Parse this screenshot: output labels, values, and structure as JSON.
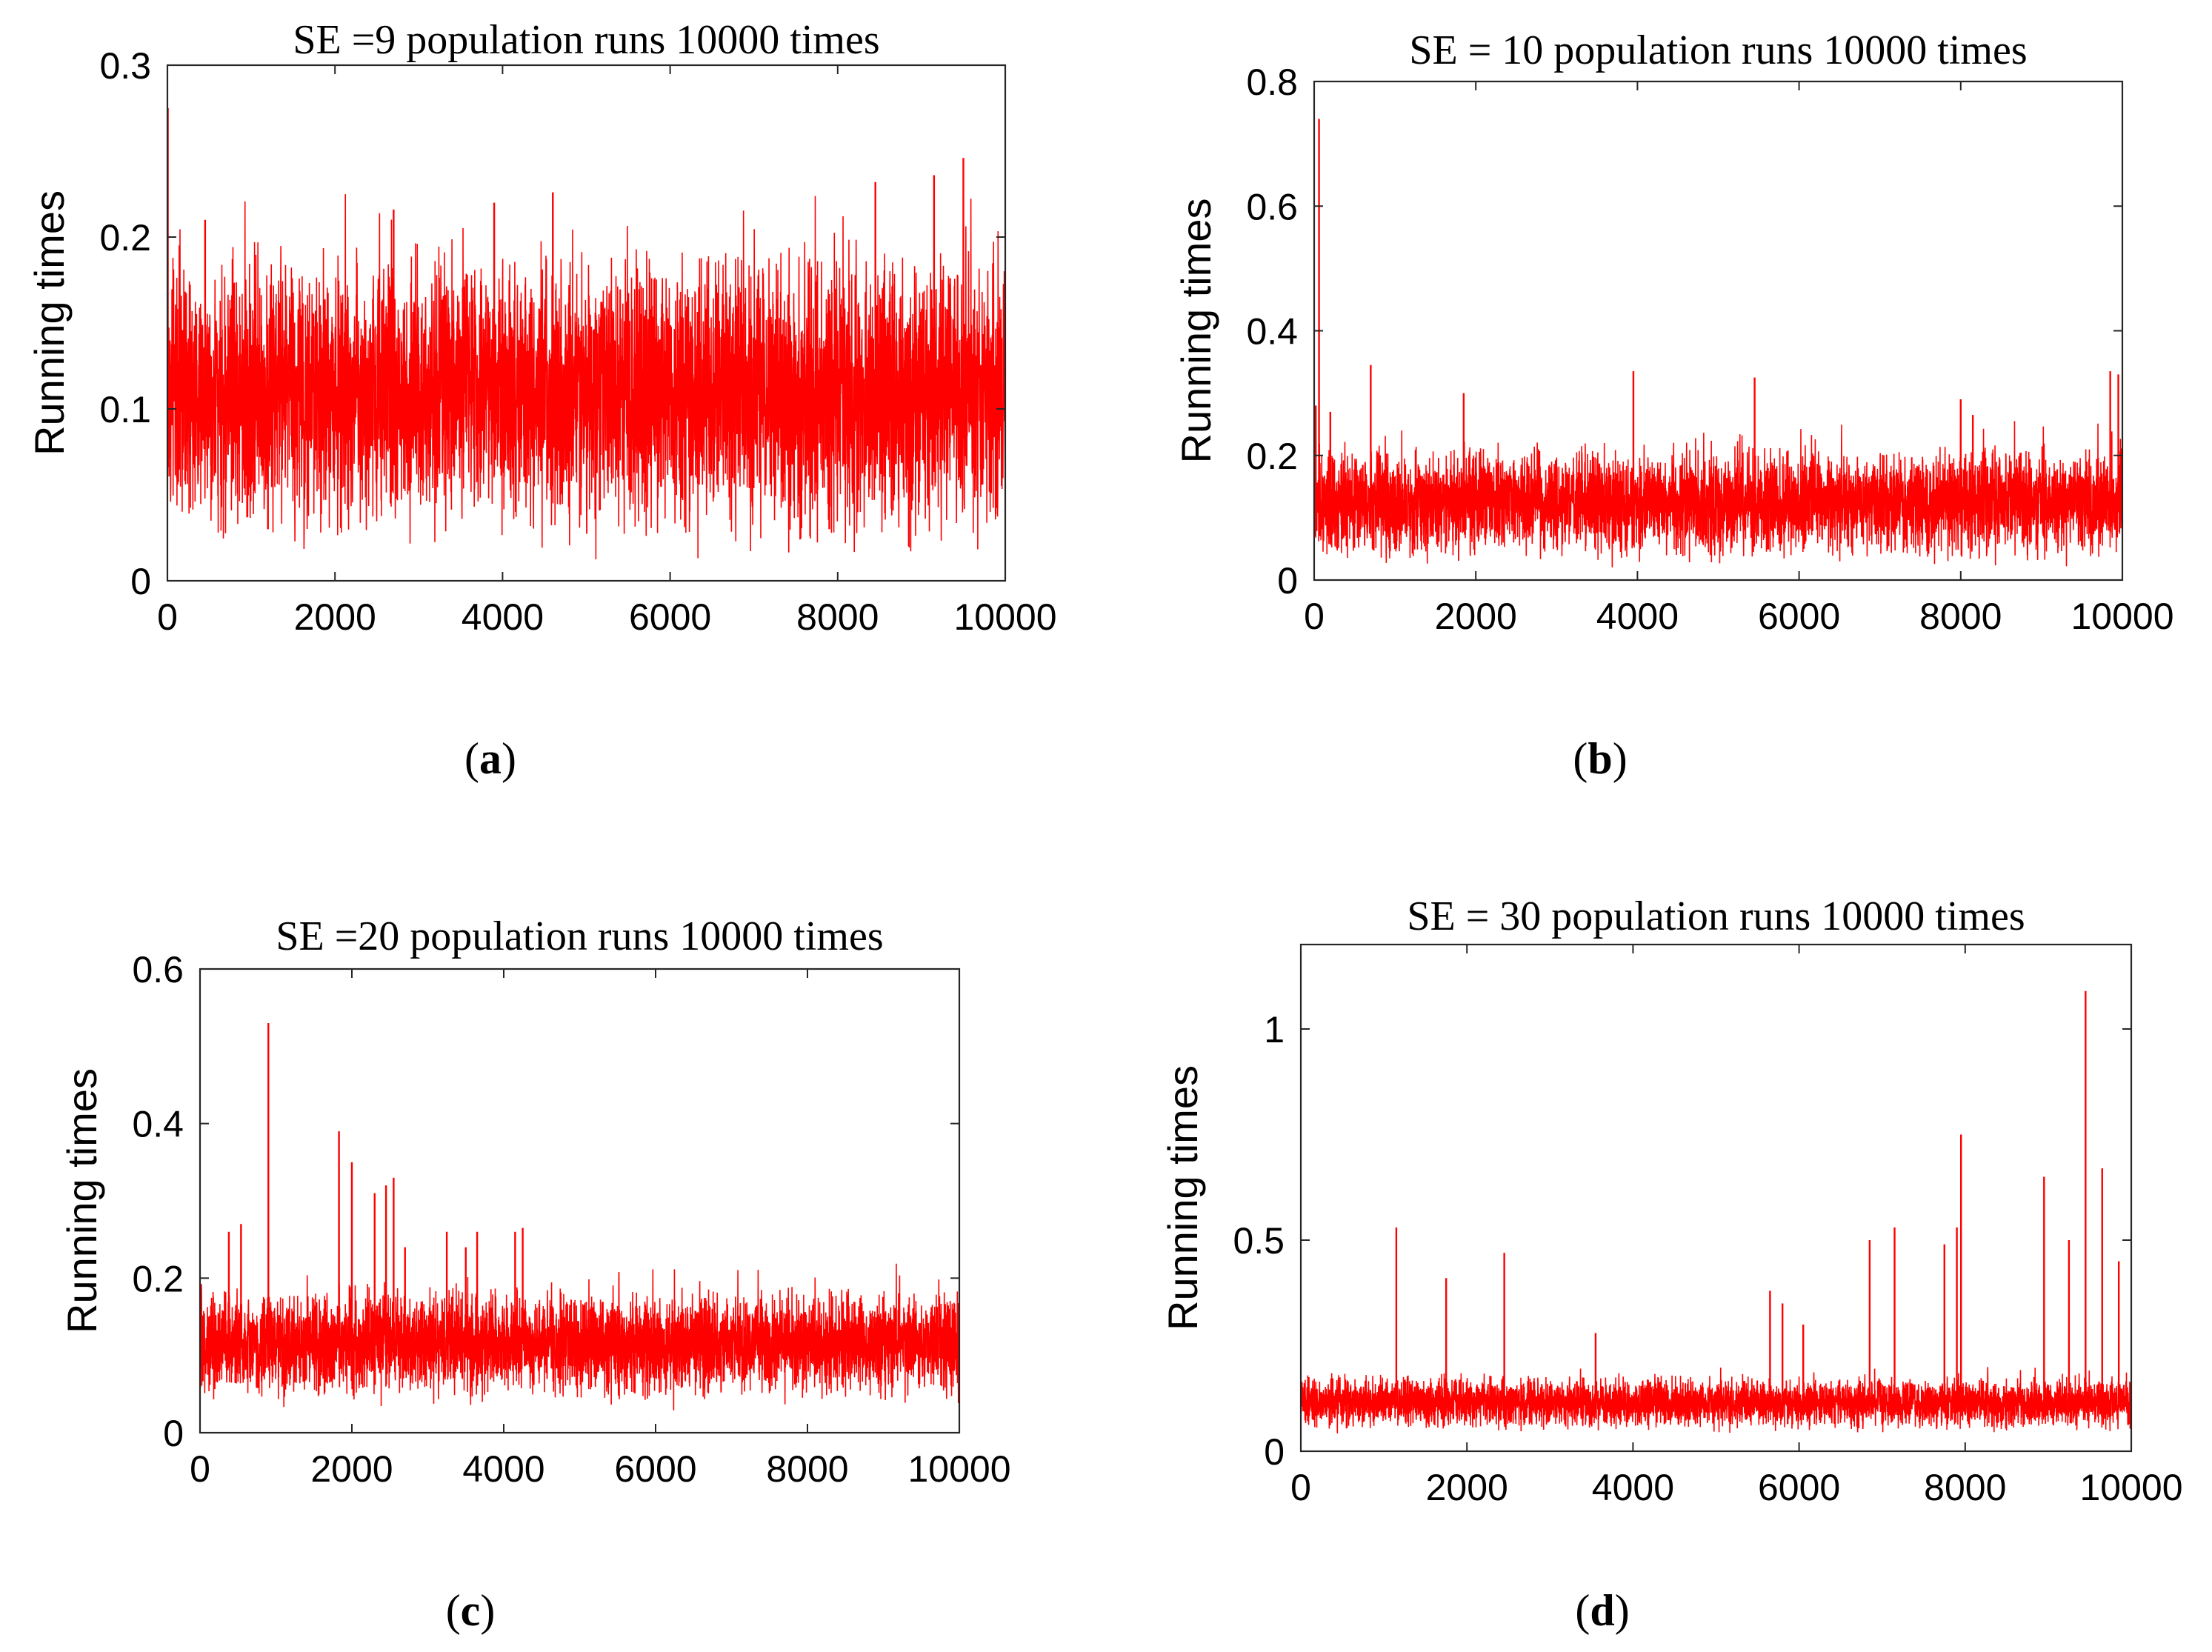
{
  "figure": {
    "line_color": "#ff0000",
    "panels": [
      {
        "caption_letter": "a"
      },
      {
        "caption_letter": "b"
      },
      {
        "caption_letter": "c"
      },
      {
        "caption_letter": "d"
      }
    ]
  },
  "chart_data": [
    {
      "type": "line",
      "title": "SE =9 population runs 10000 times",
      "xlabel": "",
      "ylabel": "Running times",
      "xlim": [
        0,
        10000
      ],
      "ylim": [
        0,
        0.3
      ],
      "xticks": [
        0,
        2000,
        4000,
        6000,
        8000,
        10000
      ],
      "xtick_labels": [
        "0",
        "2000",
        "4000",
        "6000",
        "8000",
        "10000"
      ],
      "yticks": [
        0,
        0.1,
        0.2,
        0.3
      ],
      "ytick_labels": [
        "0",
        "0.1",
        "0.2",
        "0.3"
      ],
      "n_points": 10000,
      "series": [
        {
          "name": "Running times",
          "color": "#ff0000",
          "typical_low": 0.045,
          "typical_high": 0.175,
          "baseline": 0.11,
          "spikes": [
            {
              "x": 5,
              "y": 0.275
            },
            {
              "x": 450,
              "y": 0.21
            },
            {
              "x": 2700,
              "y": 0.216
            },
            {
              "x": 3900,
              "y": 0.22
            },
            {
              "x": 4600,
              "y": 0.226
            },
            {
              "x": 8450,
              "y": 0.232
            },
            {
              "x": 9150,
              "y": 0.236
            },
            {
              "x": 9500,
              "y": 0.246
            },
            {
              "x": 1200,
              "y": 0.03
            },
            {
              "x": 7900,
              "y": 0.03
            }
          ]
        }
      ]
    },
    {
      "type": "line",
      "title": "SE = 10 population runs 10000 times",
      "xlabel": "",
      "ylabel": "Running times",
      "xlim": [
        0,
        10000
      ],
      "ylim": [
        0,
        0.8
      ],
      "xticks": [
        0,
        2000,
        4000,
        6000,
        8000,
        10000
      ],
      "xtick_labels": [
        "0",
        "2000",
        "4000",
        "6000",
        "8000",
        "10000"
      ],
      "yticks": [
        0,
        0.2,
        0.4,
        0.6,
        0.8
      ],
      "ytick_labels": [
        "0",
        "0.2",
        "0.4",
        "0.6",
        "0.8"
      ],
      "n_points": 10000,
      "series": [
        {
          "name": "Running times",
          "color": "#ff0000",
          "typical_low": 0.06,
          "typical_high": 0.2,
          "baseline": 0.125,
          "spikes": [
            {
              "x": 60,
              "y": 0.74
            },
            {
              "x": 20,
              "y": 0.28
            },
            {
              "x": 200,
              "y": 0.27
            },
            {
              "x": 700,
              "y": 0.345
            },
            {
              "x": 1850,
              "y": 0.3
            },
            {
              "x": 3950,
              "y": 0.335
            },
            {
              "x": 5450,
              "y": 0.325
            },
            {
              "x": 8000,
              "y": 0.29
            },
            {
              "x": 8150,
              "y": 0.265
            },
            {
              "x": 9850,
              "y": 0.335
            },
            {
              "x": 9950,
              "y": 0.33
            }
          ]
        }
      ]
    },
    {
      "type": "line",
      "title": "SE =20 population runs 10000 times",
      "xlabel": "",
      "ylabel": "Running times",
      "xlim": [
        0,
        10000
      ],
      "ylim": [
        0,
        0.6
      ],
      "xticks": [
        0,
        2000,
        4000,
        6000,
        8000,
        10000
      ],
      "xtick_labels": [
        "0",
        "2000",
        "4000",
        "6000",
        "8000",
        "10000"
      ],
      "yticks": [
        0,
        0.2,
        0.4,
        0.6
      ],
      "ytick_labels": [
        "0",
        "0.2",
        "0.4",
        "0.6"
      ],
      "n_points": 10000,
      "series": [
        {
          "name": "Running times",
          "color": "#ff0000",
          "typical_low": 0.065,
          "typical_high": 0.175,
          "baseline": 0.115,
          "spikes": [
            {
              "x": 380,
              "y": 0.26
            },
            {
              "x": 540,
              "y": 0.27
            },
            {
              "x": 900,
              "y": 0.53
            },
            {
              "x": 1830,
              "y": 0.39
            },
            {
              "x": 2000,
              "y": 0.35
            },
            {
              "x": 2300,
              "y": 0.31
            },
            {
              "x": 2450,
              "y": 0.32
            },
            {
              "x": 2550,
              "y": 0.33
            },
            {
              "x": 2700,
              "y": 0.24
            },
            {
              "x": 3250,
              "y": 0.26
            },
            {
              "x": 3500,
              "y": 0.24
            },
            {
              "x": 3650,
              "y": 0.26
            },
            {
              "x": 4150,
              "y": 0.26
            },
            {
              "x": 4250,
              "y": 0.265
            }
          ]
        }
      ]
    },
    {
      "type": "line",
      "title": "SE = 30 population runs 10000 times",
      "xlabel": "",
      "ylabel": "Running times",
      "xlim": [
        0,
        10000
      ],
      "ylim": [
        0,
        1.2
      ],
      "xticks": [
        0,
        2000,
        4000,
        6000,
        8000,
        10000
      ],
      "xtick_labels": [
        "0",
        "2000",
        "4000",
        "6000",
        "8000",
        "10000"
      ],
      "yticks": [
        0,
        0.5,
        1
      ],
      "ytick_labels": [
        "0",
        "0.5",
        "1"
      ],
      "n_points": 10000,
      "series": [
        {
          "name": "Running times",
          "color": "#ff0000",
          "typical_low": 0.07,
          "typical_high": 0.17,
          "baseline": 0.115,
          "spikes": [
            {
              "x": 1150,
              "y": 0.53
            },
            {
              "x": 1750,
              "y": 0.41
            },
            {
              "x": 2450,
              "y": 0.47
            },
            {
              "x": 3550,
              "y": 0.28
            },
            {
              "x": 5650,
              "y": 0.38
            },
            {
              "x": 5800,
              "y": 0.35
            },
            {
              "x": 6050,
              "y": 0.3
            },
            {
              "x": 6850,
              "y": 0.5
            },
            {
              "x": 7150,
              "y": 0.53
            },
            {
              "x": 7750,
              "y": 0.49
            },
            {
              "x": 7900,
              "y": 0.53
            },
            {
              "x": 7950,
              "y": 0.75
            },
            {
              "x": 8950,
              "y": 0.65
            },
            {
              "x": 9250,
              "y": 0.5
            },
            {
              "x": 9450,
              "y": 1.09
            },
            {
              "x": 9650,
              "y": 0.67
            },
            {
              "x": 9850,
              "y": 0.45
            }
          ]
        }
      ]
    }
  ]
}
